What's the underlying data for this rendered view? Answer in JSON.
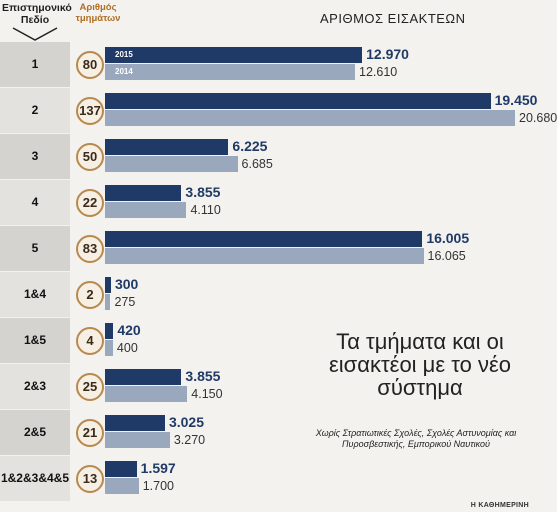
{
  "header": {
    "field_label": "Επιστημονικό Πεδίο",
    "count_label": "Αριθμός τμημάτων",
    "axis_label": "ΑΡΙΘΜΟΣ ΕΙΣΑΚΤΕΩΝ"
  },
  "note": {
    "title": "Τα τμήματα και οι εισακτέοι με το νέο σύστημα",
    "subtitle": "Χωρίς Στρατιωτικές Σχολές, Σχολές Αστυνομίας και Πυροσβεστικής, Εμπορικού Ναυτικού"
  },
  "source": "Η ΚΑΘΗΜΕΡΙΝΗ",
  "colors": {
    "y2015": "#1f3a66",
    "y2014": "#99a8bd",
    "circle": "#b8894e"
  },
  "chart_data": {
    "type": "bar",
    "orientation": "horizontal",
    "categories": [
      "1",
      "2",
      "3",
      "4",
      "5",
      "1&4",
      "1&5",
      "2&3",
      "2&5",
      "1&2&3&4&5"
    ],
    "departments": [
      80,
      137,
      50,
      22,
      83,
      2,
      4,
      25,
      21,
      13
    ],
    "series": [
      {
        "name": "2015",
        "values": [
          12970,
          19450,
          6225,
          3855,
          16005,
          300,
          420,
          3855,
          3025,
          1597
        ],
        "labels": [
          "12.970",
          "19.450",
          "6.225",
          "3.855",
          "16.005",
          "300",
          "420",
          "3.855",
          "3.025",
          "1.597"
        ]
      },
      {
        "name": "2014",
        "values": [
          12610,
          20680,
          6685,
          4110,
          16065,
          275,
          400,
          4150,
          3270,
          1700
        ],
        "labels": [
          "12.610",
          "20.680",
          "6.685",
          "4.110",
          "16.065",
          "275",
          "400",
          "4.150",
          "3.270",
          "1.700"
        ]
      }
    ],
    "xlim": [
      0,
      20680
    ],
    "grid": false,
    "legend": "inside-first-bar"
  }
}
